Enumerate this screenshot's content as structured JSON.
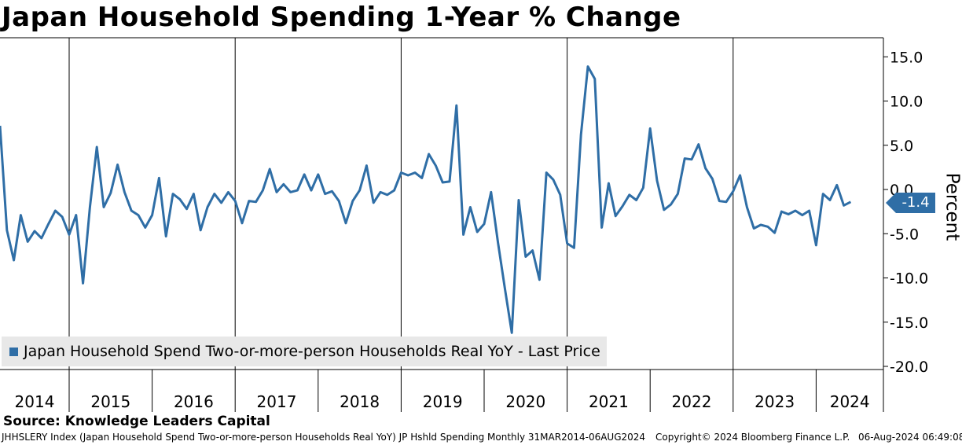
{
  "chart_data": {
    "type": "line",
    "title": "Japan Household Spending 1-Year % Change",
    "ylabel": "Percent",
    "ylim": [
      -20,
      16
    ],
    "yticks": [
      15,
      10,
      5,
      0,
      -5,
      -10,
      -15,
      -20
    ],
    "ytick_labels": [
      "15.0",
      "10.0",
      "5.0",
      "0.0",
      "-5.0",
      "-10.0",
      "-15.0",
      "-20.0"
    ],
    "year_labels": [
      "2014",
      "2015",
      "2016",
      "2017",
      "2018",
      "2019",
      "2020",
      "2021",
      "2022",
      "2023",
      "2024"
    ],
    "x_start": "2014-03",
    "x_end": "2024-06",
    "grid_years": [
      "2015",
      "2017",
      "2019",
      "2021",
      "2023"
    ],
    "series": [
      {
        "name": "Japan Household Spend Two-or-more-person Households Real YoY - Last Price",
        "color": "#2f6ea6",
        "values": [
          7.2,
          -4.6,
          -8.0,
          -2.9,
          -5.9,
          -4.7,
          -5.5,
          -3.9,
          -2.4,
          -3.1,
          -5.1,
          -2.9,
          -10.6,
          -2.0,
          4.8,
          -2.0,
          -0.4,
          2.8,
          -0.3,
          -2.4,
          -2.9,
          -4.3,
          -2.9,
          1.3,
          -5.3,
          -0.5,
          -1.1,
          -2.2,
          -0.5,
          -4.6,
          -2.0,
          -0.5,
          -1.5,
          -0.3,
          -1.3,
          -3.8,
          -1.3,
          -1.4,
          -0.1,
          2.3,
          -0.3,
          0.6,
          -0.3,
          -0.1,
          1.7,
          -0.1,
          1.7,
          -0.5,
          -0.2,
          -1.3,
          -3.8,
          -1.3,
          -0.1,
          2.7,
          -1.5,
          -0.3,
          -0.6,
          -0.1,
          1.9,
          1.6,
          1.9,
          1.3,
          4.0,
          2.7,
          0.8,
          0.9,
          9.5,
          -5.1,
          -2.0,
          -4.8,
          -3.9,
          -0.3,
          -6.0,
          -11.2,
          -16.2,
          -1.2,
          -7.6,
          -6.9,
          -10.2,
          1.9,
          1.1,
          -0.6,
          -6.1,
          -6.6,
          6.2,
          13.9,
          12.5,
          -4.3,
          0.7,
          -3.0,
          -1.9,
          -0.6,
          -1.2,
          0.2,
          6.9,
          1.0,
          -2.3,
          -1.7,
          -0.5,
          3.5,
          3.4,
          5.1,
          2.4,
          1.2,
          -1.3,
          -1.4,
          -0.2,
          1.6,
          -2.0,
          -4.4,
          -4.0,
          -4.2,
          -4.9,
          -2.5,
          -2.8,
          -2.4,
          -2.9,
          -2.4,
          -6.3,
          -0.5,
          -1.2,
          0.5,
          -1.8,
          -1.4
        ]
      }
    ],
    "last_value": "-1.4"
  },
  "source": "Source: Knowledge Leaders Capital",
  "footer": {
    "ticker_text": "JHHSLERY Index (Japan Household Spend Two-or-more-person Households Real YoY) JP Hshld Spending  Monthly 31MAR2014-06AUG2024",
    "copyright": "Copyright© 2024 Bloomberg Finance L.P.",
    "timestamp": "06-Aug-2024 06:49:08"
  },
  "colors": {
    "line": "#2f6ea6",
    "grid": "#000000",
    "legend_bg": "#e8e8e8"
  }
}
